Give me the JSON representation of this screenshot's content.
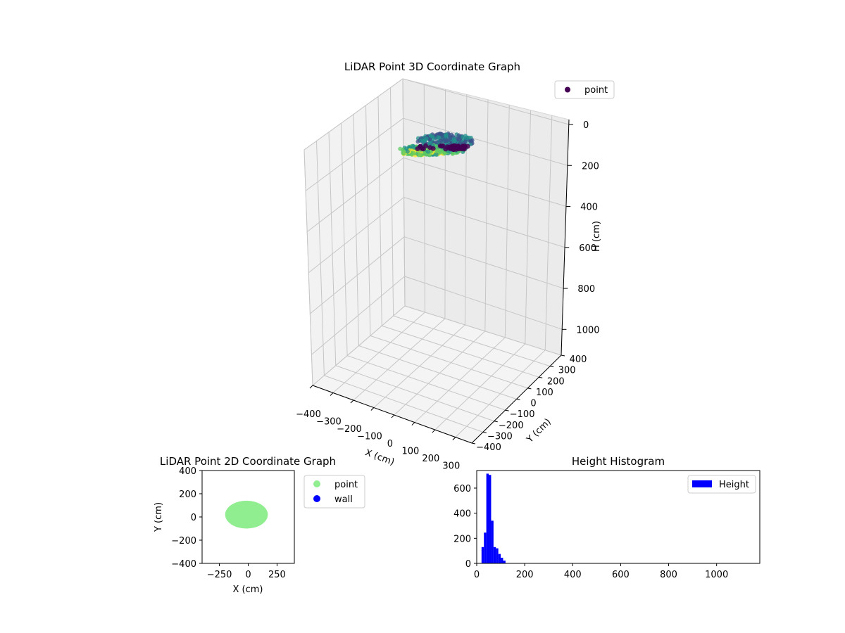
{
  "chart_data": [
    {
      "type": "scatter3d",
      "title": "LiDAR Point 3D Coordinate Graph",
      "xlabel": "X (cm)",
      "ylabel": "Y (cm)",
      "zlabel": "H (cm)",
      "x_ticks": [
        -400,
        -300,
        -200,
        -100,
        0,
        100,
        200,
        300
      ],
      "y_ticks": [
        -400,
        -300,
        -200,
        -100,
        0,
        100,
        200,
        300,
        400
      ],
      "z_ticks": [
        0,
        200,
        400,
        600,
        800,
        1000
      ],
      "x_tick_labels": [
        "−400",
        "−300",
        "−200",
        "−100",
        "0",
        "100",
        "200",
        "300"
      ],
      "y_tick_labels": [
        "−400",
        "−300",
        "−200",
        "−100",
        "0",
        "100",
        "200",
        "300",
        "400"
      ],
      "z_tick_labels": [
        "0",
        "200",
        "400",
        "600",
        "800",
        "1000"
      ],
      "xlim": [
        -400,
        380
      ],
      "ylim": [
        -400,
        400
      ],
      "zlim": [
        0,
        1150
      ],
      "z_inverted": true,
      "colormap": "viridis",
      "legend": [
        {
          "label": "point",
          "color": "#440154"
        }
      ],
      "legend_position": "top-right",
      "cluster": {
        "x_range": [
          -220,
          200
        ],
        "y_range": [
          -100,
          130
        ],
        "h_range": [
          20,
          120
        ]
      }
    },
    {
      "type": "scatter",
      "title": "LiDAR Point 2D Coordinate Graph",
      "xlabel": "X (cm)",
      "ylabel": "Y (cm)",
      "xlim": [
        -400,
        400
      ],
      "ylim": [
        -400,
        400
      ],
      "x_ticks": [
        -250,
        0,
        250
      ],
      "x_tick_labels": [
        "−250",
        "0",
        "250"
      ],
      "y_ticks": [
        400,
        200,
        0,
        -200,
        -400
      ],
      "y_tick_labels": [
        "400",
        "200",
        "0",
        "−200",
        "−400"
      ],
      "series": [
        {
          "name": "point",
          "color": "#90ee90",
          "region": {
            "x_range": [
              -200,
              170
            ],
            "y_range": [
              -100,
              140
            ]
          }
        },
        {
          "name": "wall",
          "color": "#0000ff",
          "values": []
        }
      ],
      "legend_position": "outside-right"
    },
    {
      "type": "bar",
      "title": "Height Histogram",
      "xlim": [
        0,
        1180
      ],
      "ylim": [
        0,
        740
      ],
      "x_ticks": [
        0,
        200,
        400,
        600,
        800,
        1000
      ],
      "x_tick_labels": [
        "0",
        "200",
        "400",
        "600",
        "800",
        "1000"
      ],
      "y_ticks": [
        0,
        200,
        400,
        600
      ],
      "y_tick_labels": [
        "0",
        "200",
        "400",
        "600"
      ],
      "bin_width": 10,
      "bins": [
        {
          "start": 20,
          "value": 130
        },
        {
          "start": 30,
          "value": 245
        },
        {
          "start": 40,
          "value": 715
        },
        {
          "start": 50,
          "value": 705
        },
        {
          "start": 60,
          "value": 340
        },
        {
          "start": 70,
          "value": 130
        },
        {
          "start": 80,
          "value": 120
        },
        {
          "start": 90,
          "value": 75
        },
        {
          "start": 100,
          "value": 45
        },
        {
          "start": 110,
          "value": 22
        }
      ],
      "series": [
        {
          "name": "Height",
          "color": "#0000ff"
        }
      ],
      "legend_position": "top-right"
    }
  ]
}
